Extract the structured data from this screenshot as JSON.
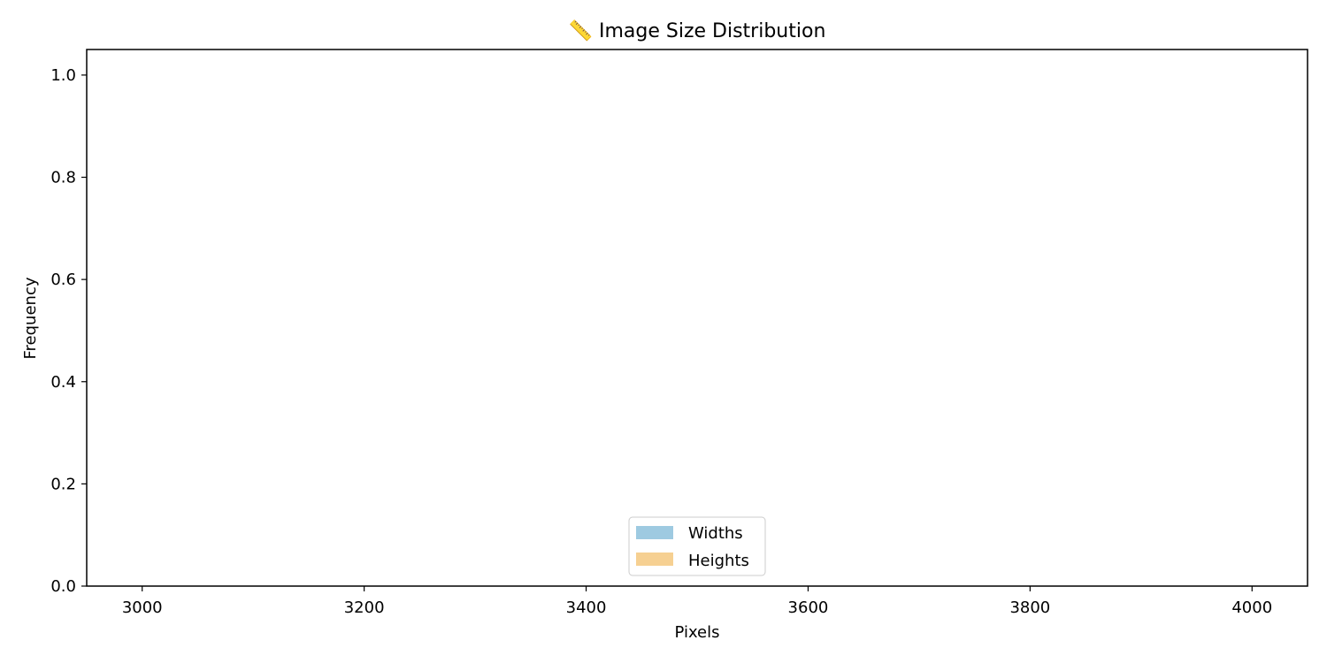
{
  "chart_data": {
    "type": "histogram",
    "title": "📏 Image Size Distribution",
    "xlabel": "Pixels",
    "ylabel": "Frequency",
    "xlim": [
      2950,
      4050
    ],
    "ylim": [
      0,
      1.05
    ],
    "xticks": [
      3000,
      3200,
      3400,
      3600,
      3800,
      4000
    ],
    "yticks": [
      0.0,
      0.2,
      0.4,
      0.6,
      0.8,
      1.0
    ],
    "grid": false,
    "legend_position": "lower center",
    "series": [
      {
        "name": "Widths",
        "color": "#9ecae1",
        "values": []
      },
      {
        "name": "Heights",
        "color": "#f6d092",
        "values": []
      }
    ]
  }
}
